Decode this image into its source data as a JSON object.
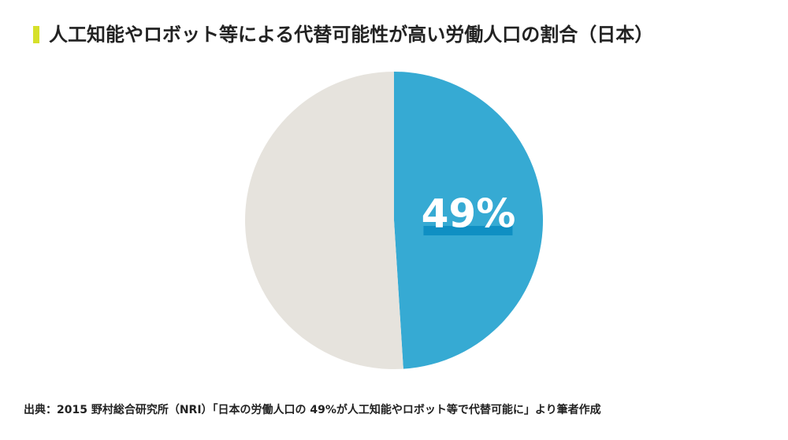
{
  "chart_data": {
    "type": "pie",
    "title": "人工知能やロボット等による代替可能性が高い労働人口の割合（日本）",
    "categories": [
      null,
      null
    ],
    "values": [
      49,
      51
    ],
    "value_labels": [
      "49%",
      null
    ],
    "colors": [
      "#36aad3",
      "#e6e3dd"
    ],
    "source": "出典：2015 野村総合研究所（NRI）「日本の労働人口の 49%が人工知能やロボット等で代替可能に」より筆者作成"
  }
}
